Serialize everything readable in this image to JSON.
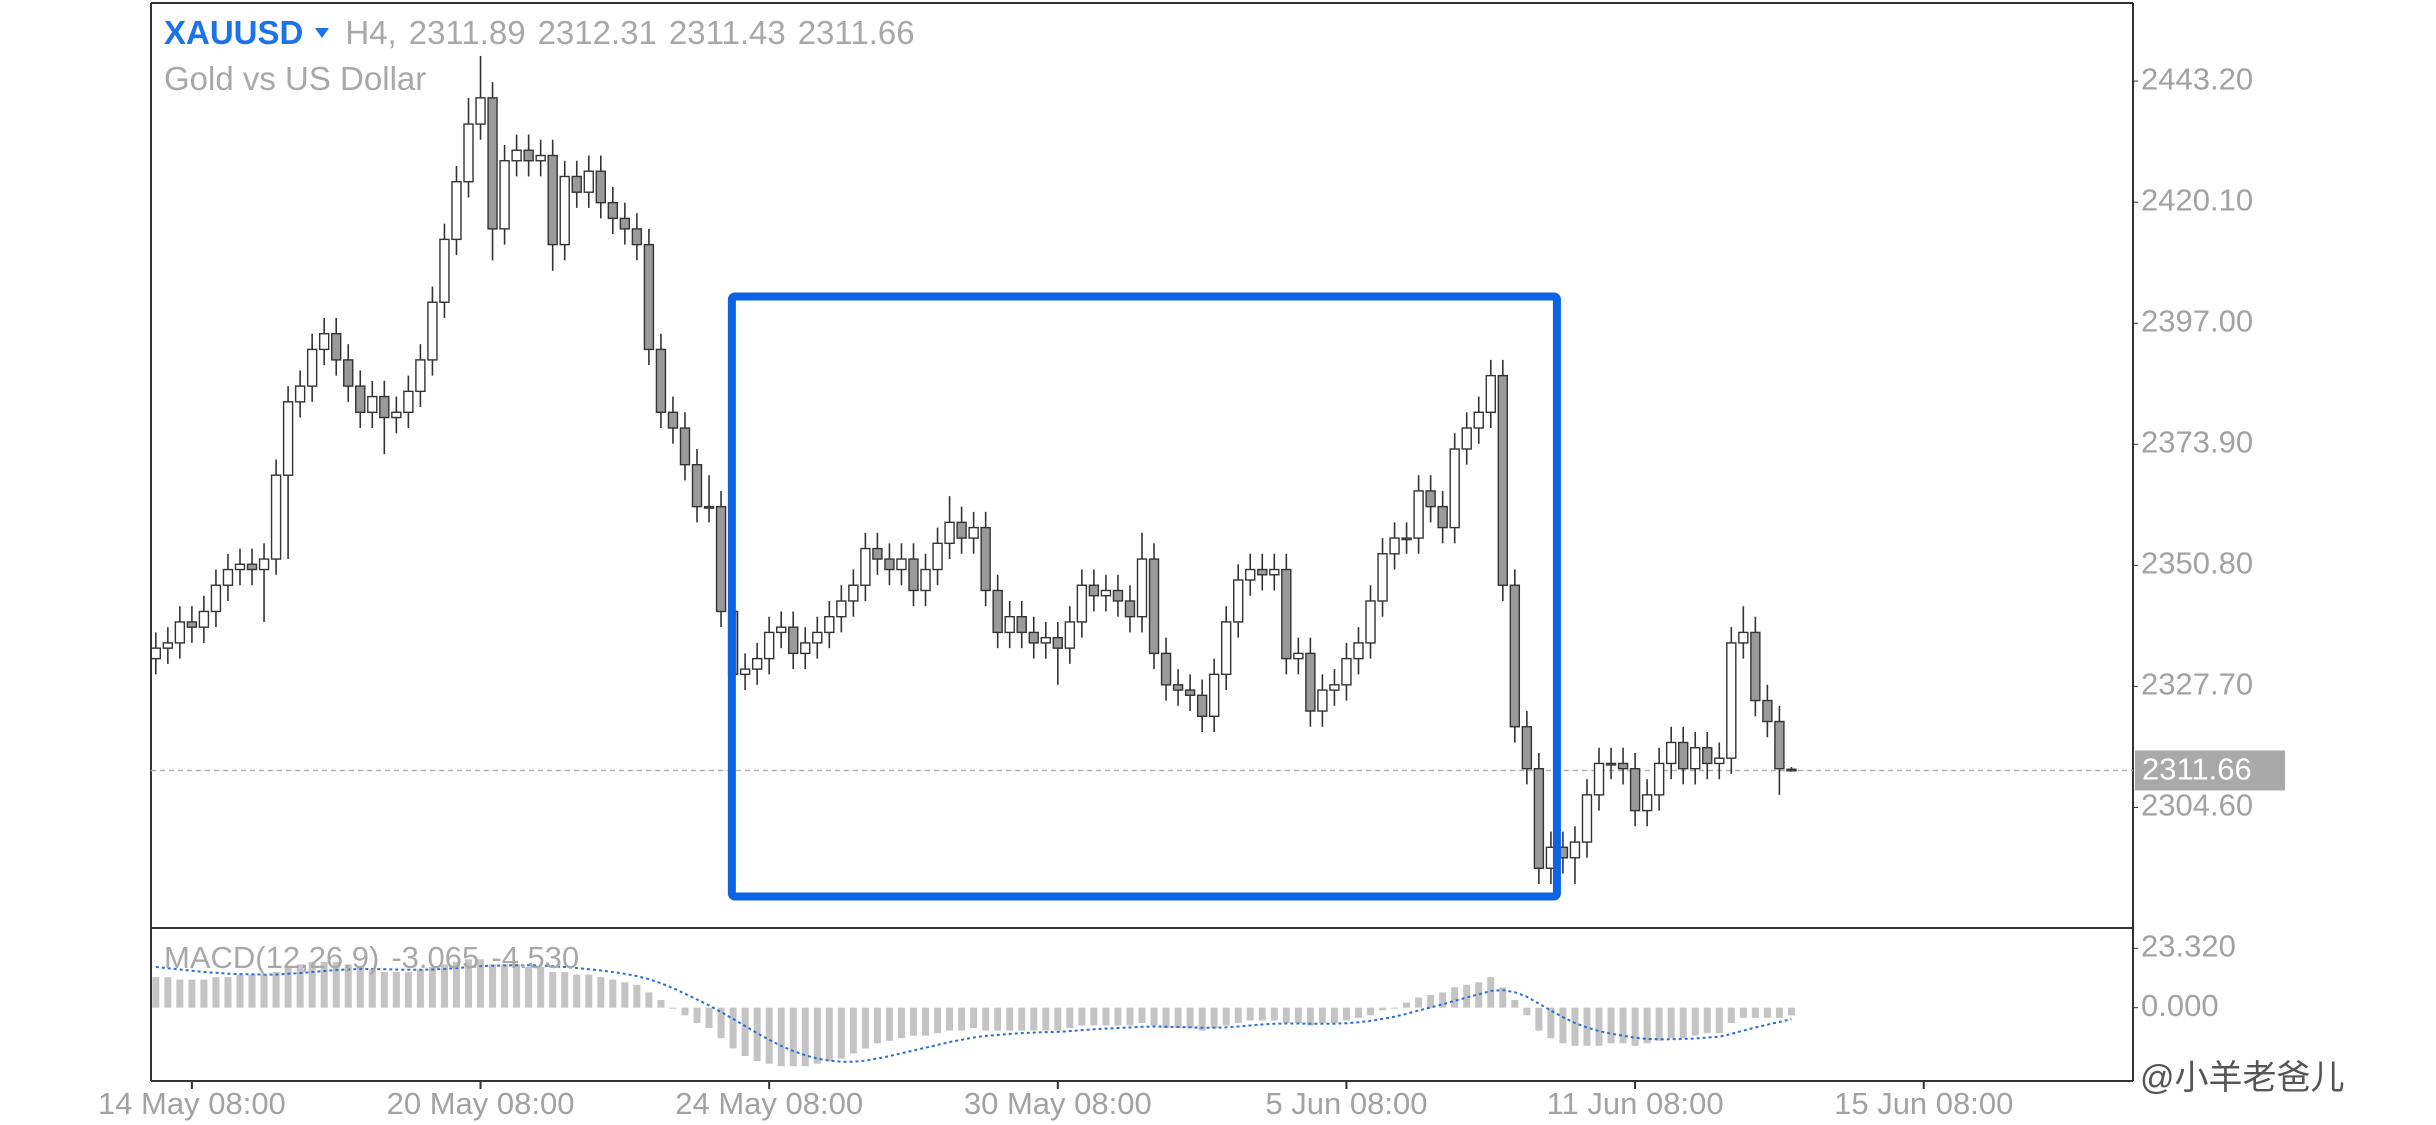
{
  "chart_data": [
    {
      "type": "candlestick",
      "title": "XAUUSD",
      "timeframe": "H4,",
      "subtitle": "Gold vs US Dollar",
      "title_color": "#1a73e8",
      "open": [
        2333,
        2335,
        2336,
        2340,
        2339,
        2342,
        2347,
        2350,
        2351,
        2350,
        2352,
        2368,
        2382,
        2385,
        2392,
        2395,
        2390,
        2385,
        2380,
        2383,
        2379,
        2380,
        2384,
        2390,
        2401,
        2413,
        2424,
        2435,
        2440,
        2415,
        2428,
        2430,
        2428,
        2429,
        2412,
        2425,
        2422,
        2426,
        2420,
        2417,
        2415,
        2412,
        2392,
        2380,
        2377,
        2370,
        2362,
        2362,
        2342,
        2330,
        2331,
        2333,
        2338,
        2339,
        2334,
        2336,
        2338,
        2341,
        2344,
        2347,
        2354,
        2352,
        2350,
        2352,
        2346,
        2350,
        2355,
        2359,
        2356,
        2358,
        2346,
        2338,
        2341,
        2338,
        2336,
        2337,
        2335,
        2340,
        2347,
        2345,
        2346,
        2344,
        2341,
        2352,
        2334,
        2328,
        2327,
        2326,
        2322,
        2330,
        2340,
        2348,
        2350,
        2349,
        2350,
        2333,
        2334,
        2323,
        2327,
        2328,
        2333,
        2336,
        2344,
        2353,
        2356,
        2356,
        2365,
        2362,
        2358,
        2373,
        2377,
        2380,
        2387,
        2347,
        2320,
        2312,
        2293,
        2297,
        2295,
        2298,
        2307,
        2313,
        2313,
        2312,
        2304,
        2307,
        2313,
        2317,
        2312,
        2316,
        2313,
        2314,
        2336,
        2338,
        2325,
        2321,
        2311.89
      ],
      "high": [
        2338,
        2339,
        2343,
        2343,
        2345,
        2350,
        2353,
        2354,
        2354,
        2355,
        2371,
        2385,
        2388,
        2395,
        2398,
        2398,
        2393,
        2388,
        2386,
        2386,
        2383,
        2387,
        2393,
        2404,
        2416,
        2427,
        2440,
        2448,
        2443,
        2431,
        2433,
        2433,
        2432,
        2432,
        2428,
        2428,
        2429,
        2429,
        2423,
        2420,
        2418,
        2415,
        2395,
        2383,
        2380,
        2373,
        2368,
        2365,
        2345,
        2334,
        2336,
        2341,
        2342,
        2342,
        2339,
        2341,
        2344,
        2347,
        2350,
        2357,
        2357,
        2355,
        2355,
        2355,
        2353,
        2358,
        2364,
        2362,
        2361,
        2361,
        2349,
        2344,
        2344,
        2341,
        2340,
        2340,
        2343,
        2350,
        2350,
        2349,
        2349,
        2347,
        2357,
        2355,
        2337,
        2331,
        2330,
        2329,
        2333,
        2343,
        2351,
        2353,
        2353,
        2353,
        2353,
        2337,
        2337,
        2330,
        2331,
        2336,
        2339,
        2347,
        2356,
        2359,
        2359,
        2368,
        2368,
        2365,
        2376,
        2380,
        2383,
        2390,
        2390,
        2350,
        2323,
        2315,
        2300,
        2300,
        2301,
        2310,
        2316,
        2316,
        2316,
        2315,
        2310,
        2316,
        2320,
        2320,
        2319,
        2319,
        2317,
        2339,
        2343,
        2341,
        2328,
        2324,
        2312.31
      ],
      "low": [
        2330,
        2332,
        2333,
        2336,
        2336,
        2339,
        2344,
        2347,
        2347,
        2340,
        2349,
        2352,
        2379,
        2382,
        2389,
        2387,
        2382,
        2377,
        2377,
        2372,
        2376,
        2377,
        2381,
        2387,
        2398,
        2410,
        2421,
        2432,
        2409,
        2412,
        2425,
        2425,
        2425,
        2407,
        2409,
        2419,
        2419,
        2417,
        2414,
        2412,
        2409,
        2389,
        2377,
        2374,
        2367,
        2359,
        2359,
        2339,
        2327,
        2327,
        2328,
        2330,
        2335,
        2331,
        2331,
        2333,
        2335,
        2338,
        2341,
        2344,
        2349,
        2347,
        2347,
        2343,
        2343,
        2347,
        2352,
        2353,
        2353,
        2343,
        2335,
        2335,
        2335,
        2333,
        2333,
        2328,
        2332,
        2337,
        2342,
        2342,
        2341,
        2338,
        2338,
        2331,
        2325,
        2324,
        2323,
        2319,
        2319,
        2327,
        2337,
        2345,
        2346,
        2346,
        2330,
        2330,
        2320,
        2320,
        2324,
        2325,
        2330,
        2333,
        2341,
        2350,
        2353,
        2353,
        2359,
        2355,
        2355,
        2370,
        2374,
        2377,
        2344,
        2317,
        2309,
        2290,
        2290,
        2292,
        2290,
        2295,
        2304,
        2310,
        2309,
        2301,
        2301,
        2304,
        2310,
        2309,
        2309,
        2310,
        2310,
        2311,
        2333,
        2322,
        2318,
        2307,
        2311.43
      ],
      "close": [
        2335,
        2336,
        2340,
        2339,
        2342,
        2347,
        2350,
        2351,
        2350,
        2352,
        2368,
        2382,
        2385,
        2392,
        2395,
        2390,
        2385,
        2380,
        2383,
        2379,
        2380,
        2384,
        2390,
        2401,
        2413,
        2424,
        2435,
        2440,
        2415,
        2428,
        2430,
        2428,
        2429,
        2412,
        2425,
        2422,
        2426,
        2420,
        2417,
        2415,
        2412,
        2392,
        2380,
        2377,
        2370,
        2362,
        2362,
        2342,
        2330,
        2331,
        2333,
        2338,
        2339,
        2334,
        2336,
        2338,
        2341,
        2344,
        2347,
        2354,
        2352,
        2350,
        2352,
        2346,
        2350,
        2355,
        2359,
        2356,
        2358,
        2346,
        2338,
        2341,
        2338,
        2336,
        2337,
        2335,
        2340,
        2347,
        2345,
        2346,
        2344,
        2341,
        2352,
        2334,
        2328,
        2327,
        2326,
        2322,
        2330,
        2340,
        2348,
        2350,
        2349,
        2350,
        2333,
        2334,
        2323,
        2327,
        2328,
        2333,
        2336,
        2344,
        2353,
        2356,
        2356,
        2365,
        2362,
        2358,
        2373,
        2377,
        2380,
        2387,
        2347,
        2320,
        2312,
        2293,
        2297,
        2295,
        2298,
        2307,
        2313,
        2313,
        2312,
        2304,
        2307,
        2313,
        2317,
        2312,
        2316,
        2313,
        2314,
        2336,
        2338,
        2325,
        2321,
        2312,
        2311.66
      ],
      "up_color": "#ffffff",
      "down_color": "#9a9a9a",
      "edge_color": "#333333",
      "xlim": [
        -0.4,
        164.4
      ],
      "xticks": [
        {
          "value": 3,
          "label": "14 May 08:00"
        },
        {
          "value": 27,
          "label": "20 May 08:00"
        },
        {
          "value": 51,
          "label": "24 May 08:00"
        },
        {
          "value": 75,
          "label": "30 May 08:00"
        },
        {
          "value": 99,
          "label": "5 Jun 08:00"
        },
        {
          "value": 123,
          "label": "11 Jun 08:00"
        },
        {
          "value": 147,
          "label": "15 Jun 08:00"
        }
      ],
      "ylim": [
        2281.6,
        2458.1
      ],
      "yticks": [
        {
          "value": 2443.2,
          "label": "2443.20"
        },
        {
          "value": 2420.1,
          "label": "2420.10"
        },
        {
          "value": 2397,
          "label": "2397.00"
        },
        {
          "value": 2373.9,
          "label": "2373.90"
        },
        {
          "value": 2350.8,
          "label": "2350.80"
        },
        {
          "value": 2327.7,
          "label": "2327.70"
        },
        {
          "value": 2304.6,
          "label": "2304.60"
        }
      ],
      "price_line": true,
      "highlight": {
        "x": [
          47.9,
          116.5
        ],
        "y": [
          2287.6,
          2402.1
        ],
        "color": "#0b63e5"
      },
      "watermark": "@小羊老爸儿"
    },
    {
      "type": "macd",
      "title": "MACD(12,26,9)",
      "ylim": [
        -28.8,
        31.3
      ],
      "yticks": [
        {
          "value": 23.32,
          "label": "23.320"
        },
        {
          "value": 0,
          "label": "0.000"
        }
      ],
      "series": [
        {
          "color": "#c4c4c4",
          "last_label": "-3.065",
          "values": [
            12,
            12,
            11,
            11,
            11,
            12,
            12,
            13,
            13,
            13,
            14,
            16,
            17,
            18,
            18,
            18,
            17,
            16,
            15,
            14,
            14,
            14,
            15,
            16,
            17,
            18,
            19,
            19,
            17,
            17,
            17,
            16,
            16,
            14,
            14,
            13,
            13,
            12,
            11,
            10,
            9,
            6,
            3,
            0,
            -3,
            -6,
            -8,
            -12,
            -16,
            -19,
            -21,
            -22,
            -23,
            -23,
            -23,
            -22,
            -21,
            -20,
            -18,
            -16,
            -14,
            -13,
            -12,
            -11,
            -11,
            -10,
            -9,
            -9,
            -8,
            -9,
            -9,
            -9,
            -9,
            -9,
            -9,
            -9,
            -8,
            -7,
            -7,
            -7,
            -7,
            -7,
            -6,
            -7,
            -8,
            -8,
            -8,
            -9,
            -8,
            -7,
            -6,
            -5,
            -5,
            -5,
            -6,
            -6,
            -7,
            -6,
            -6,
            -5,
            -4,
            -3,
            -1,
            0,
            2,
            4,
            5,
            6,
            8,
            9,
            10,
            12,
            8,
            3,
            -3,
            -9,
            -12,
            -14,
            -15,
            -15,
            -15,
            -14,
            -14,
            -15,
            -14,
            -13,
            -12,
            -12,
            -11,
            -10,
            -10,
            -6,
            -4,
            -4,
            -4,
            -4,
            -3.065
          ]
        },
        {
          "color": "#2a6fd6",
          "last_label": "-4.530",
          "values": [
            16,
            15.5,
            15,
            14.5,
            14,
            13.7,
            13.4,
            13.2,
            13.1,
            13,
            13,
            13.3,
            13.6,
            14,
            14.4,
            14.8,
            15,
            15.2,
            15.2,
            15.1,
            15,
            14.9,
            14.9,
            15,
            15.2,
            15.5,
            15.9,
            16.3,
            16.5,
            16.6,
            16.7,
            16.7,
            16.6,
            16.3,
            16,
            15.6,
            15.1,
            14.6,
            14,
            13.3,
            12.4,
            11.2,
            9.6,
            7.7,
            5.5,
            3.2,
            0.9,
            -1.7,
            -4.4,
            -7.2,
            -10,
            -12.6,
            -15,
            -17,
            -18.7,
            -20,
            -20.8,
            -21.2,
            -21.2,
            -20.8,
            -20,
            -19,
            -17.9,
            -16.8,
            -15.7,
            -14.6,
            -13.5,
            -12.6,
            -11.7,
            -11.1,
            -10.7,
            -10.3,
            -10,
            -9.8,
            -9.6,
            -9.5,
            -9.2,
            -8.8,
            -8.5,
            -8.2,
            -8,
            -7.8,
            -7.5,
            -7.4,
            -7.5,
            -7.6,
            -7.7,
            -7.9,
            -7.9,
            -7.7,
            -7.4,
            -7,
            -6.6,
            -6.3,
            -6.2,
            -6.2,
            -6.3,
            -6.3,
            -6.3,
            -6.1,
            -5.7,
            -5.2,
            -4.4,
            -3.5,
            -2.4,
            -1.1,
            0.1,
            1.3,
            2.7,
            4,
            5.2,
            6.6,
            6.9,
            6.1,
            4.3,
            1.6,
            -1.1,
            -3.7,
            -6,
            -7.8,
            -9.2,
            -10.2,
            -11,
            -11.8,
            -12.3,
            -12.4,
            -12.4,
            -12.3,
            -12.1,
            -11.7,
            -11.4,
            -10.3,
            -9,
            -7.8,
            -6.7,
            -5.6,
            -4.53
          ]
        }
      ]
    }
  ]
}
